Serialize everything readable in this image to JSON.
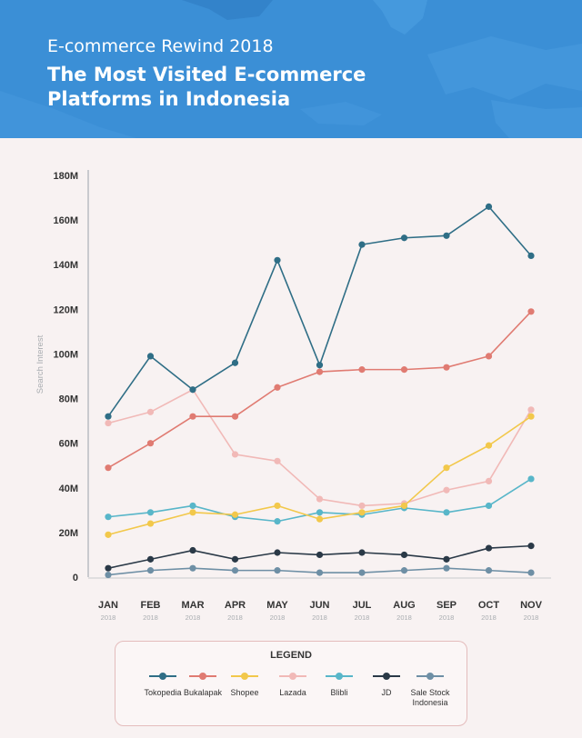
{
  "header": {
    "kicker": "E-commerce Rewind 2018",
    "title_line1": "The Most Visited E-commerce",
    "title_line2": "Platforms in Indonesia",
    "background_color": "#3b8fd6"
  },
  "legend": {
    "title": "LEGEND"
  },
  "chart_data": {
    "type": "line",
    "title": "The Most Visited E-commerce Platforms in Indonesia",
    "ylabel": "Search Interest",
    "xlabel": "",
    "categories": [
      "JAN",
      "FEB",
      "MAR",
      "APR",
      "MAY",
      "JUN",
      "JUL",
      "AUG",
      "SEP",
      "OCT",
      "NOV"
    ],
    "category_sublabels": [
      "2018",
      "2018",
      "2018",
      "2018",
      "2018",
      "2018",
      "2018",
      "2018",
      "2018",
      "2018",
      "2018"
    ],
    "yticks": [
      "0",
      "20M",
      "40M",
      "60M",
      "80M",
      "100M",
      "120M",
      "140M",
      "160M",
      "180M"
    ],
    "ylim": [
      0,
      180
    ],
    "y_unit": "M",
    "grid": false,
    "legend_position": "bottom",
    "series": [
      {
        "name": "Tokopedia",
        "color": "#2f6e86",
        "values": [
          72,
          99,
          84,
          96,
          142,
          95,
          149,
          152,
          153,
          166,
          144
        ]
      },
      {
        "name": "Bukalapak",
        "color": "#e07b72",
        "values": [
          49,
          60,
          72,
          72,
          85,
          92,
          93,
          93,
          94,
          99,
          119
        ]
      },
      {
        "name": "Shopee",
        "color": "#f2c84b",
        "values": [
          19,
          24,
          29,
          28,
          32,
          26,
          29,
          32,
          49,
          59,
          72
        ]
      },
      {
        "name": "Lazada",
        "color": "#f1b9b7",
        "values": [
          69,
          74,
          84,
          55,
          52,
          35,
          32,
          33,
          39,
          43,
          75
        ]
      },
      {
        "name": "Blibli",
        "color": "#58b6c9",
        "values": [
          27,
          29,
          32,
          27,
          25,
          29,
          28,
          31,
          29,
          32,
          44
        ]
      },
      {
        "name": "JD",
        "color": "#2a3947",
        "values": [
          4,
          8,
          12,
          8,
          11,
          10,
          11,
          10,
          8,
          13,
          14
        ]
      },
      {
        "name": "Sale Stock Indonesia",
        "color": "#6e8fa5",
        "values": [
          1,
          3,
          4,
          3,
          3,
          2,
          2,
          3,
          4,
          3,
          2
        ]
      }
    ]
  }
}
